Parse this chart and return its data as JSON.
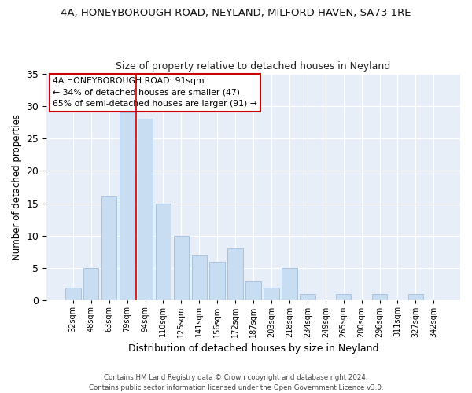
{
  "title_line1": "4A, HONEYBOROUGH ROAD, NEYLAND, MILFORD HAVEN, SA73 1RE",
  "title_line2": "Size of property relative to detached houses in Neyland",
  "xlabel": "Distribution of detached houses by size in Neyland",
  "ylabel": "Number of detached properties",
  "bar_labels": [
    "32sqm",
    "48sqm",
    "63sqm",
    "79sqm",
    "94sqm",
    "110sqm",
    "125sqm",
    "141sqm",
    "156sqm",
    "172sqm",
    "187sqm",
    "203sqm",
    "218sqm",
    "234sqm",
    "249sqm",
    "265sqm",
    "280sqm",
    "296sqm",
    "311sqm",
    "327sqm",
    "342sqm"
  ],
  "bar_values": [
    2,
    5,
    16,
    29,
    28,
    15,
    10,
    7,
    6,
    8,
    3,
    2,
    5,
    1,
    0,
    1,
    0,
    1,
    0,
    1,
    0
  ],
  "bar_color": "#c9ddf2",
  "bar_edge_color": "#a0bedd",
  "vline_x_index": 3.5,
  "vline_color": "#cc0000",
  "annotation_text": "4A HONEYBOROUGH ROAD: 91sqm\n← 34% of detached houses are smaller (47)\n65% of semi-detached houses are larger (91) →",
  "annotation_box_color": "#ffffff",
  "annotation_box_edge": "#cc0000",
  "ylim": [
    0,
    35
  ],
  "yticks": [
    0,
    5,
    10,
    15,
    20,
    25,
    30,
    35
  ],
  "background_color": "#e8eef8",
  "fig_background": "#ffffff",
  "footer": "Contains HM Land Registry data © Crown copyright and database right 2024.\nContains public sector information licensed under the Open Government Licence v3.0."
}
